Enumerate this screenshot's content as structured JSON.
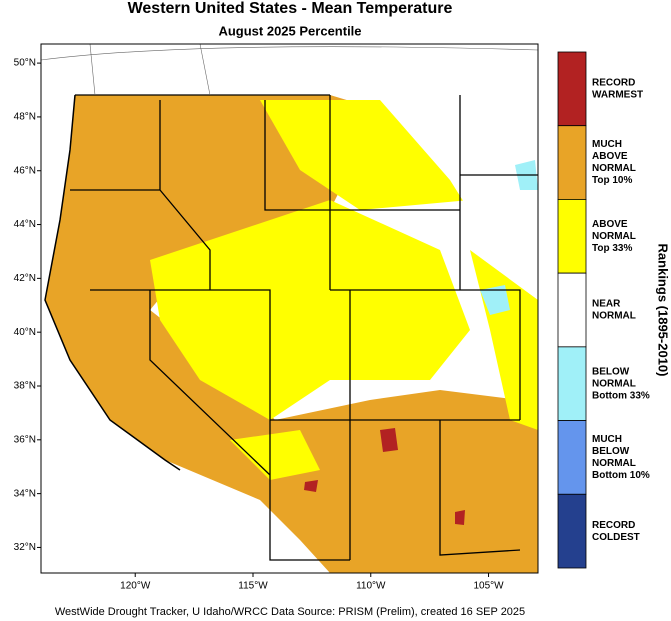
{
  "title": "Western United States - Mean Temperature",
  "subtitle": "August 2025 Percentile",
  "footer": "WestWide Drought Tracker, U Idaho/WRCC Data Source: PRISM (Prelim), created 16 SEP 2025",
  "map": {
    "xlim": [
      -124,
      -102.9
    ],
    "ylim": [
      31.05,
      50.71
    ],
    "yticks": [
      {
        "value": 50,
        "label": "50°N"
      },
      {
        "value": 48,
        "label": "48°N"
      },
      {
        "value": 46,
        "label": "46°N"
      },
      {
        "value": 44,
        "label": "44°N"
      },
      {
        "value": 42,
        "label": "42°N"
      },
      {
        "value": 40,
        "label": "40°N"
      },
      {
        "value": 38,
        "label": "38°N"
      },
      {
        "value": 36,
        "label": "36°N"
      },
      {
        "value": 34,
        "label": "34°N"
      },
      {
        "value": 32,
        "label": "32°N"
      }
    ],
    "xticks": [
      {
        "value": -120,
        "label": "120°W"
      },
      {
        "value": -115,
        "label": "115°W"
      },
      {
        "value": -110,
        "label": "110°W"
      },
      {
        "value": -105,
        "label": "105°W"
      }
    ]
  },
  "legend": {
    "title": "Rankings (1895-2010)",
    "items": [
      {
        "color": "#b22222",
        "lines": [
          "RECORD",
          "WARMEST"
        ]
      },
      {
        "color": "#e8a427",
        "lines": [
          "MUCH",
          "ABOVE",
          "NORMAL",
          "Top 10%"
        ]
      },
      {
        "color": "#ffff00",
        "lines": [
          "ABOVE",
          "NORMAL",
          "Top 33%"
        ]
      },
      {
        "color": "#ffffff",
        "lines": [
          "NEAR",
          "NORMAL"
        ]
      },
      {
        "color": "#a0f0f8",
        "lines": [
          "BELOW",
          "NORMAL",
          "Bottom 33%"
        ]
      },
      {
        "color": "#6495ed",
        "lines": [
          "MUCH",
          "BELOW",
          "NORMAL",
          "Bottom 10%"
        ]
      },
      {
        "color": "#24408e",
        "lines": [
          "RECORD",
          "COLDEST"
        ]
      }
    ]
  }
}
